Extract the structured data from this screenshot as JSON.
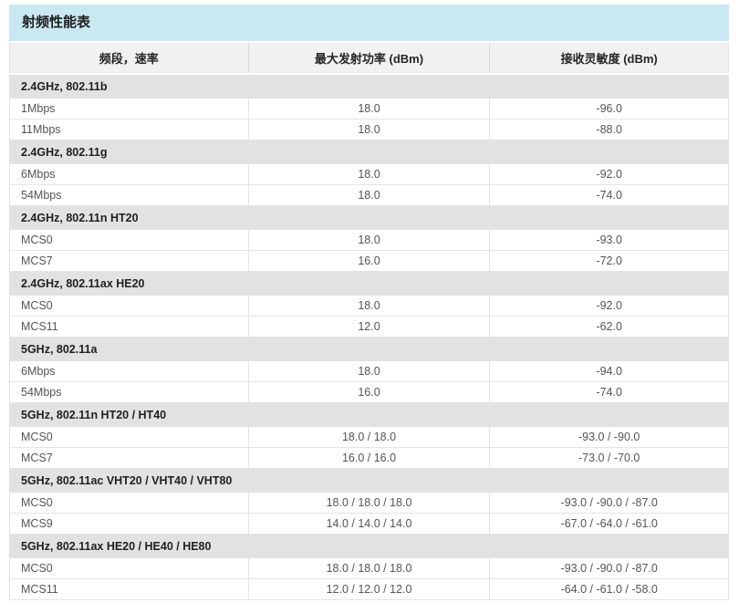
{
  "title": "射频性能表",
  "colors": {
    "title_bar_bg": "#c9e8f2",
    "header_row_bg": "#f1f1f1",
    "section_row_bg": "#e2e2e2",
    "row_border": "#e4e4e4",
    "data_text": "#545454",
    "bold_text": "#1f1f1f"
  },
  "table": {
    "headers": [
      "频段，速率",
      "最大发射功率 (dBm)",
      "接收灵敏度 (dBm)"
    ],
    "sections": [
      {
        "label": "2.4GHz, 802.11b",
        "rows": [
          {
            "rate": "1Mbps",
            "tx_power": "18.0",
            "rx_sensitivity": "-96.0"
          },
          {
            "rate": "11Mbps",
            "tx_power": "18.0",
            "rx_sensitivity": "-88.0"
          }
        ]
      },
      {
        "label": "2.4GHz, 802.11g",
        "rows": [
          {
            "rate": "6Mbps",
            "tx_power": "18.0",
            "rx_sensitivity": "-92.0"
          },
          {
            "rate": "54Mbps",
            "tx_power": "18.0",
            "rx_sensitivity": "-74.0"
          }
        ]
      },
      {
        "label": "2.4GHz, 802.11n HT20",
        "rows": [
          {
            "rate": "MCS0",
            "tx_power": "18.0",
            "rx_sensitivity": "-93.0"
          },
          {
            "rate": "MCS7",
            "tx_power": "16.0",
            "rx_sensitivity": "-72.0"
          }
        ]
      },
      {
        "label": "2.4GHz, 802.11ax HE20",
        "rows": [
          {
            "rate": "MCS0",
            "tx_power": "18.0",
            "rx_sensitivity": "-92.0"
          },
          {
            "rate": "MCS11",
            "tx_power": "12.0",
            "rx_sensitivity": "-62.0"
          }
        ]
      },
      {
        "label": "5GHz, 802.11a",
        "rows": [
          {
            "rate": "6Mbps",
            "tx_power": "18.0",
            "rx_sensitivity": "-94.0"
          },
          {
            "rate": "54Mbps",
            "tx_power": "16.0",
            "rx_sensitivity": "-74.0"
          }
        ]
      },
      {
        "label": "5GHz, 802.11n HT20 / HT40",
        "rows": [
          {
            "rate": "MCS0",
            "tx_power": "18.0 / 18.0",
            "rx_sensitivity": "-93.0 / -90.0"
          },
          {
            "rate": "MCS7",
            "tx_power": "16.0 / 16.0",
            "rx_sensitivity": "-73.0 / -70.0"
          }
        ]
      },
      {
        "label": "5GHz, 802.11ac VHT20 / VHT40 / VHT80",
        "rows": [
          {
            "rate": "MCS0",
            "tx_power": "18.0 / 18.0 / 18.0",
            "rx_sensitivity": "-93.0 / -90.0 / -87.0"
          },
          {
            "rate": "MCS9",
            "tx_power": "14.0 / 14.0 / 14.0",
            "rx_sensitivity": "-67.0 / -64.0 / -61.0"
          }
        ]
      },
      {
        "label": "5GHz, 802.11ax HE20 / HE40 / HE80",
        "rows": [
          {
            "rate": "MCS0",
            "tx_power": "18.0 / 18.0 / 18.0",
            "rx_sensitivity": "-93.0 / -90.0 / -87.0"
          },
          {
            "rate": "MCS11",
            "tx_power": "12.0 / 12.0 / 12.0",
            "rx_sensitivity": "-64.0 / -61.0 / -58.0"
          }
        ]
      }
    ]
  }
}
